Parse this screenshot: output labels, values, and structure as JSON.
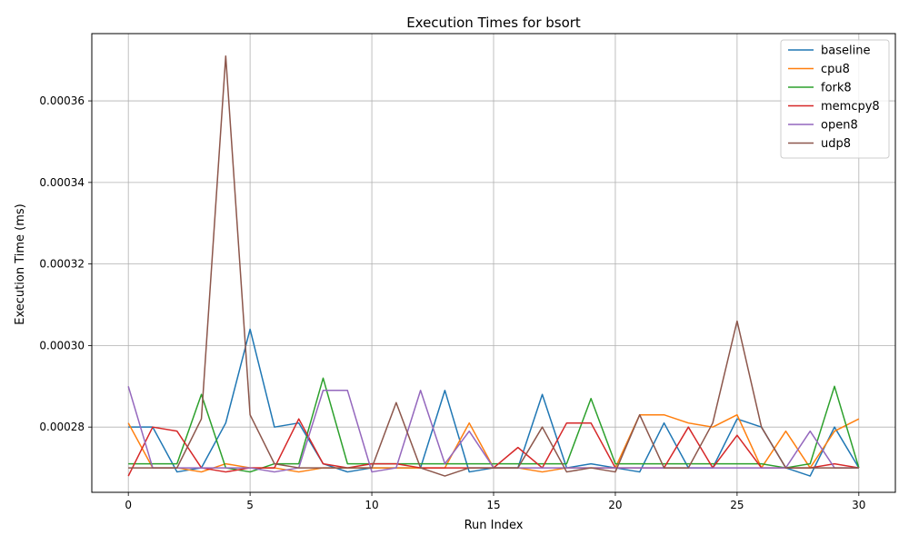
{
  "chart_data": {
    "type": "line",
    "title": "Execution Times for bsort",
    "xlabel": "Run Index",
    "ylabel": "Execution Time (ms)",
    "xlim": [
      -1.5,
      31.5
    ],
    "ylim": [
      0.000264,
      0.0003765
    ],
    "xticks": [
      0,
      5,
      10,
      15,
      20,
      25,
      30
    ],
    "yticks": [
      0.00028,
      0.0003,
      0.00032,
      0.00034,
      0.00036
    ],
    "ytick_labels": [
      "0.00028",
      "0.00030",
      "0.00032",
      "0.00034",
      "0.00036"
    ],
    "grid": true,
    "legend_position": "top-right",
    "x": [
      0,
      1,
      2,
      3,
      4,
      5,
      6,
      7,
      8,
      9,
      10,
      11,
      12,
      13,
      14,
      15,
      16,
      17,
      18,
      19,
      20,
      21,
      22,
      23,
      24,
      25,
      26,
      27,
      28,
      29,
      30
    ],
    "series": [
      {
        "name": "baseline",
        "color": "#1f77b4",
        "values": [
          0.00028,
          0.00028,
          0.000269,
          0.00027,
          0.000281,
          0.000304,
          0.00028,
          0.000281,
          0.000271,
          0.000269,
          0.00027,
          0.00027,
          0.00027,
          0.000289,
          0.000269,
          0.00027,
          0.00027,
          0.000288,
          0.00027,
          0.000271,
          0.00027,
          0.000269,
          0.000281,
          0.00027,
          0.00027,
          0.000282,
          0.00028,
          0.00027,
          0.000268,
          0.00028,
          0.00027
        ]
      },
      {
        "name": "cpu8",
        "color": "#ff7f0e",
        "values": [
          0.000281,
          0.00027,
          0.00027,
          0.000269,
          0.000271,
          0.00027,
          0.00027,
          0.000269,
          0.00027,
          0.00027,
          0.00027,
          0.00027,
          0.00027,
          0.00027,
          0.000281,
          0.00027,
          0.00027,
          0.000269,
          0.00027,
          0.00027,
          0.00027,
          0.000283,
          0.000283,
          0.000281,
          0.00028,
          0.000283,
          0.00027,
          0.000279,
          0.00027,
          0.000279,
          0.000282
        ]
      },
      {
        "name": "fork8",
        "color": "#2ca02c",
        "values": [
          0.000271,
          0.000271,
          0.000271,
          0.000288,
          0.00027,
          0.000269,
          0.000271,
          0.000271,
          0.000292,
          0.000271,
          0.000271,
          0.000271,
          0.000271,
          0.000271,
          0.000271,
          0.000271,
          0.000271,
          0.000271,
          0.000271,
          0.000287,
          0.000271,
          0.000271,
          0.000271,
          0.000271,
          0.000271,
          0.000271,
          0.000271,
          0.00027,
          0.000271,
          0.00029,
          0.00027
        ]
      },
      {
        "name": "memcpy8",
        "color": "#d62728",
        "values": [
          0.000268,
          0.00028,
          0.000279,
          0.00027,
          0.000269,
          0.00027,
          0.00027,
          0.000282,
          0.000271,
          0.00027,
          0.000271,
          0.000271,
          0.00027,
          0.00027,
          0.00027,
          0.00027,
          0.000275,
          0.00027,
          0.000281,
          0.000281,
          0.00027,
          0.00027,
          0.00027,
          0.00028,
          0.00027,
          0.000278,
          0.00027,
          0.00027,
          0.00027,
          0.000271,
          0.00027
        ]
      },
      {
        "name": "open8",
        "color": "#9467bd",
        "values": [
          0.00029,
          0.00027,
          0.00027,
          0.00027,
          0.00027,
          0.00027,
          0.000269,
          0.00027,
          0.000289,
          0.000289,
          0.000269,
          0.00027,
          0.000289,
          0.000271,
          0.000279,
          0.00027,
          0.00027,
          0.00027,
          0.00027,
          0.00027,
          0.00027,
          0.00027,
          0.00027,
          0.00027,
          0.00027,
          0.00027,
          0.00027,
          0.00027,
          0.000279,
          0.00027,
          0.00027
        ]
      },
      {
        "name": "udp8",
        "color": "#8c564b",
        "values": [
          0.00027,
          0.00027,
          0.00027,
          0.000282,
          0.000371,
          0.000283,
          0.000271,
          0.00027,
          0.00027,
          0.00027,
          0.00027,
          0.000286,
          0.00027,
          0.000268,
          0.00027,
          0.00027,
          0.00027,
          0.00028,
          0.000269,
          0.00027,
          0.000269,
          0.000283,
          0.00027,
          0.00027,
          0.000281,
          0.000306,
          0.00028,
          0.00027,
          0.00027,
          0.00027,
          0.00027
        ]
      }
    ]
  }
}
